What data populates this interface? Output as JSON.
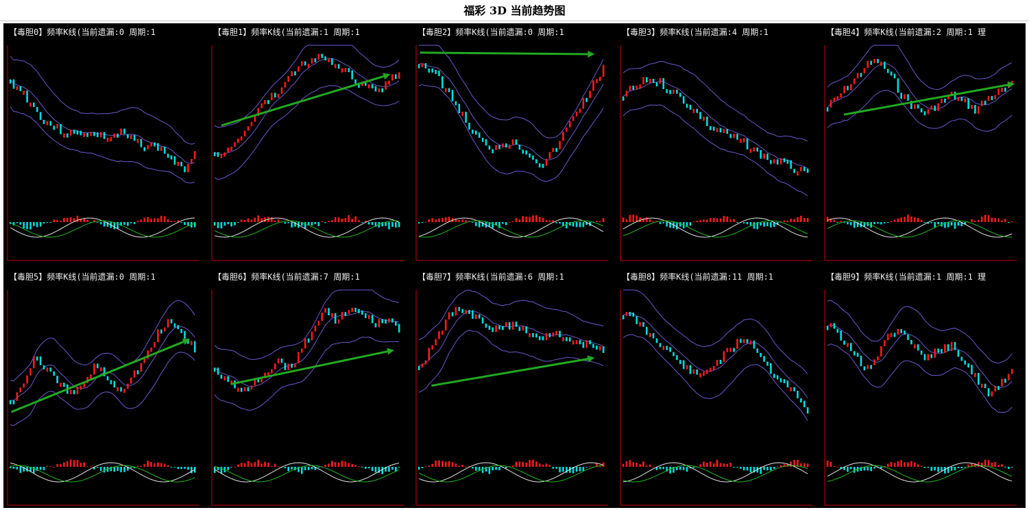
{
  "page": {
    "title": "福彩 3D 当前趋势图"
  },
  "colors": {
    "up": "#ff1a1a",
    "down": "#00dede",
    "band": "#6a5acd",
    "ma_fast": "#e8e8e8",
    "ma_slow": "#22bb22",
    "arrow": "#22aa22",
    "axis": "#cc0000",
    "text": "#f0f0f0"
  },
  "chart_data": [
    {
      "type": "candlestick",
      "title": "【毒胆0】频率K线(当前遗漏:0 周期:1",
      "trend": [
        78,
        72,
        60,
        52,
        47,
        45,
        46,
        44,
        42,
        45,
        40,
        38,
        36,
        30,
        20,
        34
      ],
      "arrow": null
    },
    {
      "type": "candlestick",
      "title": "【毒胆1】频率K线(当前遗漏:1 周期:1",
      "trend": [
        30,
        34,
        40,
        55,
        65,
        70,
        80,
        90,
        94,
        92,
        88,
        82,
        76,
        72,
        78,
        84
      ],
      "arrow": [
        [
          0.05,
          0.5
        ],
        [
          0.93,
          0.17
        ]
      ]
    },
    {
      "type": "candlestick",
      "title": "【毒胆2】频率K线(当前遗漏:0 周期:1",
      "trend": [
        92,
        86,
        76,
        64,
        50,
        40,
        36,
        40,
        38,
        32,
        25,
        34,
        48,
        62,
        74,
        88
      ],
      "arrow": [
        [
          0.02,
          0.03
        ],
        [
          0.93,
          0.04
        ]
      ]
    },
    {
      "type": "candlestick",
      "title": "【毒胆3】频率K线(当前遗漏:4 周期:1",
      "trend": [
        70,
        75,
        80,
        78,
        72,
        66,
        58,
        50,
        46,
        42,
        38,
        32,
        28,
        26,
        22,
        18
      ],
      "arrow": null
    },
    {
      "type": "candlestick",
      "title": "【毒胆4】频率K线(当前遗漏:2 周期:1 理",
      "trend": [
        62,
        70,
        78,
        88,
        92,
        84,
        70,
        62,
        58,
        64,
        70,
        66,
        60,
        68,
        72,
        76
      ],
      "arrow": [
        [
          0.1,
          0.43
        ],
        [
          0.99,
          0.23
        ]
      ]
    },
    {
      "type": "candlestick",
      "title": "【毒胆5】频率K线(当前遗漏:0 周期:1",
      "trend": [
        30,
        40,
        60,
        50,
        40,
        34,
        42,
        54,
        44,
        38,
        48,
        58,
        74,
        82,
        74,
        64
      ],
      "arrow": [
        [
          0.02,
          0.77
        ],
        [
          0.95,
          0.3
        ]
      ]
    },
    {
      "type": "candlestick",
      "title": "【毒胆6】频率K线(当前遗漏:7 周期:1",
      "trend": [
        50,
        44,
        36,
        42,
        48,
        56,
        52,
        62,
        78,
        88,
        82,
        90,
        86,
        80,
        84,
        76
      ],
      "arrow": [
        [
          0.1,
          0.59
        ],
        [
          0.95,
          0.37
        ]
      ]
    },
    {
      "type": "candlestick",
      "title": "【毒胆7】频率K线(当前遗漏:6 周期:1",
      "trend": [
        50,
        66,
        80,
        90,
        86,
        82,
        76,
        78,
        80,
        74,
        70,
        76,
        72,
        66,
        70,
        62
      ],
      "arrow": [
        [
          0.08,
          0.6
        ],
        [
          0.93,
          0.42
        ]
      ]
    },
    {
      "type": "candlestick",
      "title": "【毒胆8】频率K线(当前遗漏:11 周期:1",
      "trend": [
        88,
        82,
        74,
        68,
        60,
        52,
        46,
        52,
        58,
        66,
        72,
        62,
        50,
        44,
        34,
        22
      ],
      "arrow": null
    },
    {
      "type": "candlestick",
      "title": "【毒胆9】频率K线(当前遗漏:1 周期:1 理",
      "trend": [
        80,
        72,
        62,
        52,
        60,
        74,
        78,
        66,
        58,
        62,
        66,
        58,
        46,
        34,
        40,
        50
      ],
      "arrow": null
    }
  ]
}
